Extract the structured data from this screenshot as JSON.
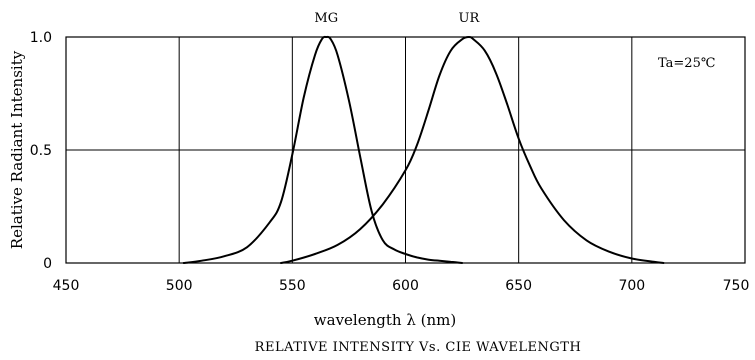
{
  "chart_data": {
    "type": "line",
    "title": "RELATIVE INTENSITY Vs. CIE WAVELENGTH",
    "xlabel": "wavelength λ (nm)",
    "ylabel": "Relative Radiant Intensity",
    "xlim": [
      450,
      750
    ],
    "ylim": [
      0,
      1.0
    ],
    "x_ticks": [
      450,
      500,
      550,
      600,
      650,
      700,
      750
    ],
    "y_ticks": [
      {
        "value": 0,
        "label": "0"
      },
      {
        "value": 0.5,
        "label": "0.5"
      },
      {
        "value": 1.0,
        "label": "1.0"
      }
    ],
    "grid": true,
    "annotation": "Ta=25℃",
    "series": [
      {
        "name": "MG",
        "x": [
          502,
          510,
          520,
          530,
          540,
          545,
          550,
          555,
          560,
          563,
          565,
          567,
          570,
          575,
          580,
          585,
          590,
          595,
          600,
          605,
          610,
          615,
          620,
          625
        ],
        "y": [
          0.0,
          0.01,
          0.03,
          0.07,
          0.18,
          0.27,
          0.48,
          0.73,
          0.92,
          0.99,
          1.0,
          0.99,
          0.92,
          0.72,
          0.47,
          0.23,
          0.1,
          0.06,
          0.04,
          0.025,
          0.015,
          0.01,
          0.005,
          0.0
        ]
      },
      {
        "name": "UR",
        "x": [
          545,
          550,
          560,
          570,
          580,
          590,
          600,
          605,
          610,
          615,
          620,
          625,
          628,
          630,
          635,
          640,
          645,
          650,
          655,
          660,
          670,
          680,
          690,
          700,
          710,
          714
        ],
        "y": [
          0.0,
          0.01,
          0.04,
          0.08,
          0.15,
          0.26,
          0.41,
          0.52,
          0.67,
          0.83,
          0.94,
          0.99,
          1.0,
          0.99,
          0.94,
          0.84,
          0.7,
          0.55,
          0.43,
          0.33,
          0.19,
          0.1,
          0.05,
          0.02,
          0.005,
          0.0
        ]
      }
    ]
  }
}
